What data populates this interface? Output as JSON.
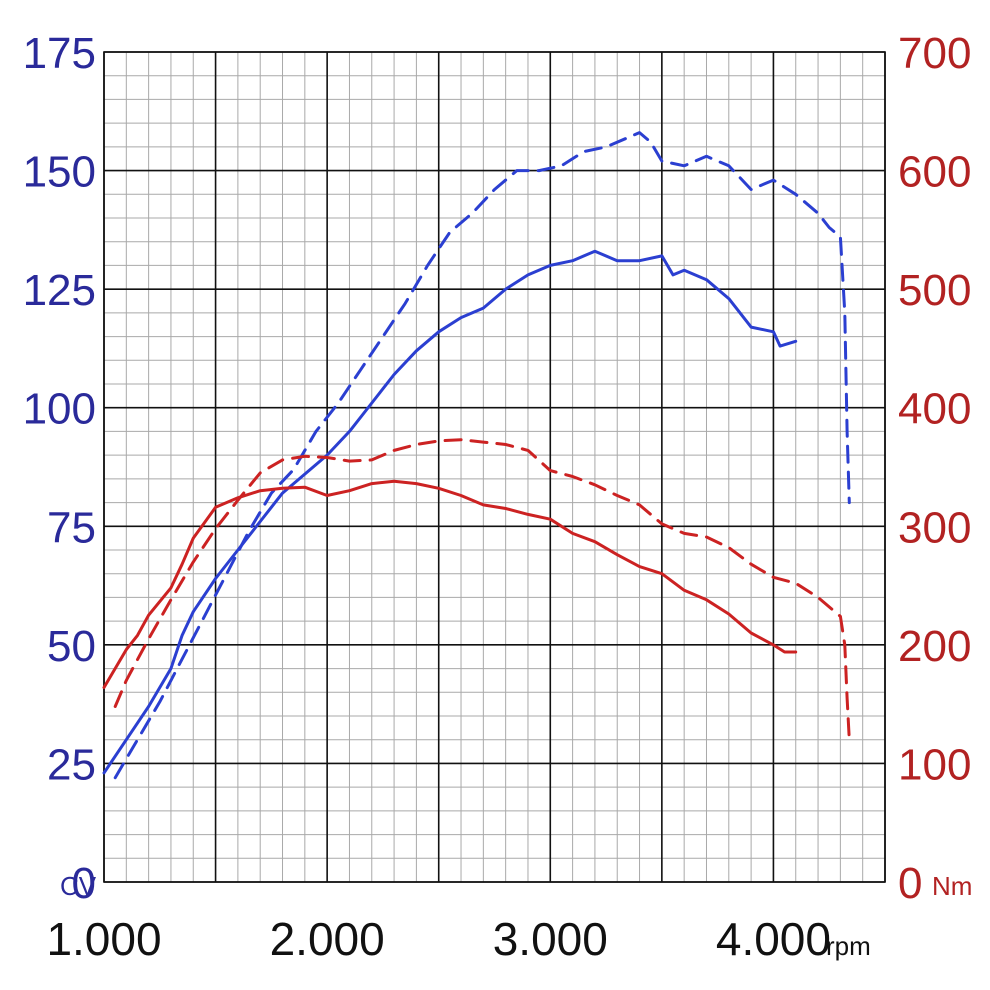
{
  "chart_data": {
    "type": "line",
    "title": "",
    "x_axis": {
      "range": [
        1000,
        4500
      ],
      "ticks": [
        1000,
        2000,
        3000,
        4000
      ],
      "tick_labels": [
        "1.000",
        "2.000",
        "3.000",
        "4.000"
      ],
      "unit": "rpm"
    },
    "y_left": {
      "range": [
        0,
        175
      ],
      "ticks": [
        0,
        25,
        50,
        75,
        100,
        125,
        150,
        175
      ],
      "tick_labels": [
        "0",
        "25",
        "50",
        "75",
        "100",
        "125",
        "150",
        "175"
      ],
      "unit": "CV",
      "color": "#2a2a9a"
    },
    "y_right": {
      "range": [
        0,
        700
      ],
      "ticks": [
        0,
        100,
        200,
        300,
        400,
        500,
        600,
        700
      ],
      "tick_labels": [
        "0",
        "100",
        "200",
        "300",
        "400",
        "500",
        "600",
        "700"
      ],
      "unit": "Nm",
      "color": "#b22222"
    },
    "grid": true,
    "minor_grid": {
      "x_step": 100,
      "y_step": 5
    },
    "series": [
      {
        "id": "power-solid",
        "axis": "left",
        "style": "solid",
        "color": "#2b3fd1",
        "points": [
          [
            1000,
            23
          ],
          [
            1100,
            30
          ],
          [
            1200,
            37
          ],
          [
            1300,
            45
          ],
          [
            1350,
            52
          ],
          [
            1400,
            57
          ],
          [
            1500,
            64
          ],
          [
            1600,
            70
          ],
          [
            1700,
            76
          ],
          [
            1800,
            82
          ],
          [
            1900,
            86
          ],
          [
            2000,
            90
          ],
          [
            2100,
            95
          ],
          [
            2200,
            101
          ],
          [
            2300,
            107
          ],
          [
            2400,
            112
          ],
          [
            2500,
            116
          ],
          [
            2600,
            119
          ],
          [
            2700,
            121
          ],
          [
            2800,
            125
          ],
          [
            2900,
            128
          ],
          [
            3000,
            130
          ],
          [
            3100,
            131
          ],
          [
            3200,
            133
          ],
          [
            3300,
            131
          ],
          [
            3400,
            131
          ],
          [
            3500,
            132
          ],
          [
            3550,
            128
          ],
          [
            3600,
            129
          ],
          [
            3700,
            127
          ],
          [
            3800,
            123
          ],
          [
            3900,
            117
          ],
          [
            4000,
            116
          ],
          [
            4030,
            113
          ],
          [
            4100,
            114
          ]
        ]
      },
      {
        "id": "power-dashed",
        "axis": "left",
        "style": "dashed",
        "color": "#2b3fd1",
        "points": [
          [
            1050,
            22
          ],
          [
            1150,
            30
          ],
          [
            1250,
            38
          ],
          [
            1350,
            47
          ],
          [
            1450,
            56
          ],
          [
            1550,
            65
          ],
          [
            1650,
            74
          ],
          [
            1750,
            82
          ],
          [
            1850,
            87
          ],
          [
            1950,
            95
          ],
          [
            2050,
            101
          ],
          [
            2150,
            108
          ],
          [
            2250,
            115
          ],
          [
            2350,
            122
          ],
          [
            2450,
            130
          ],
          [
            2550,
            137
          ],
          [
            2650,
            141
          ],
          [
            2750,
            146
          ],
          [
            2850,
            150
          ],
          [
            2950,
            150
          ],
          [
            3050,
            151
          ],
          [
            3150,
            154
          ],
          [
            3250,
            155
          ],
          [
            3350,
            157
          ],
          [
            3400,
            158
          ],
          [
            3450,
            156
          ],
          [
            3500,
            152
          ],
          [
            3600,
            151
          ],
          [
            3700,
            153
          ],
          [
            3800,
            151
          ],
          [
            3900,
            146
          ],
          [
            4000,
            148
          ],
          [
            4100,
            145
          ],
          [
            4200,
            141
          ],
          [
            4250,
            138
          ],
          [
            4300,
            136
          ],
          [
            4320,
            120
          ],
          [
            4330,
            95
          ],
          [
            4340,
            80
          ]
        ]
      },
      {
        "id": "torque-solid",
        "axis": "right",
        "style": "solid",
        "color": "#cc2222",
        "points": [
          [
            1000,
            164
          ],
          [
            1100,
            196
          ],
          [
            1150,
            208
          ],
          [
            1200,
            225
          ],
          [
            1300,
            248
          ],
          [
            1350,
            268
          ],
          [
            1400,
            290
          ],
          [
            1500,
            316
          ],
          [
            1600,
            324
          ],
          [
            1700,
            330
          ],
          [
            1800,
            332
          ],
          [
            1900,
            333
          ],
          [
            2000,
            326
          ],
          [
            2100,
            330
          ],
          [
            2200,
            336
          ],
          [
            2300,
            338
          ],
          [
            2400,
            336
          ],
          [
            2500,
            332
          ],
          [
            2600,
            326
          ],
          [
            2700,
            318
          ],
          [
            2800,
            315
          ],
          [
            2900,
            310
          ],
          [
            3000,
            306
          ],
          [
            3100,
            294
          ],
          [
            3200,
            287
          ],
          [
            3300,
            276
          ],
          [
            3400,
            266
          ],
          [
            3500,
            260
          ],
          [
            3600,
            246
          ],
          [
            3700,
            238
          ],
          [
            3800,
            226
          ],
          [
            3900,
            210
          ],
          [
            4000,
            200
          ],
          [
            4050,
            194
          ],
          [
            4100,
            194
          ]
        ]
      },
      {
        "id": "torque-dashed",
        "axis": "right",
        "style": "dashed",
        "color": "#cc2222",
        "points": [
          [
            1050,
            148
          ],
          [
            1100,
            170
          ],
          [
            1200,
            205
          ],
          [
            1300,
            238
          ],
          [
            1400,
            270
          ],
          [
            1500,
            298
          ],
          [
            1600,
            322
          ],
          [
            1700,
            345
          ],
          [
            1800,
            356
          ],
          [
            1900,
            359
          ],
          [
            2000,
            358
          ],
          [
            2100,
            355
          ],
          [
            2200,
            356
          ],
          [
            2300,
            364
          ],
          [
            2400,
            369
          ],
          [
            2500,
            372
          ],
          [
            2600,
            373
          ],
          [
            2700,
            371
          ],
          [
            2800,
            369
          ],
          [
            2900,
            364
          ],
          [
            3000,
            347
          ],
          [
            3100,
            342
          ],
          [
            3200,
            335
          ],
          [
            3300,
            326
          ],
          [
            3400,
            318
          ],
          [
            3500,
            302
          ],
          [
            3600,
            294
          ],
          [
            3700,
            291
          ],
          [
            3800,
            282
          ],
          [
            3900,
            268
          ],
          [
            4000,
            257
          ],
          [
            4100,
            252
          ],
          [
            4200,
            240
          ],
          [
            4300,
            224
          ],
          [
            4320,
            200
          ],
          [
            4330,
            155
          ],
          [
            4340,
            120
          ]
        ]
      }
    ]
  }
}
